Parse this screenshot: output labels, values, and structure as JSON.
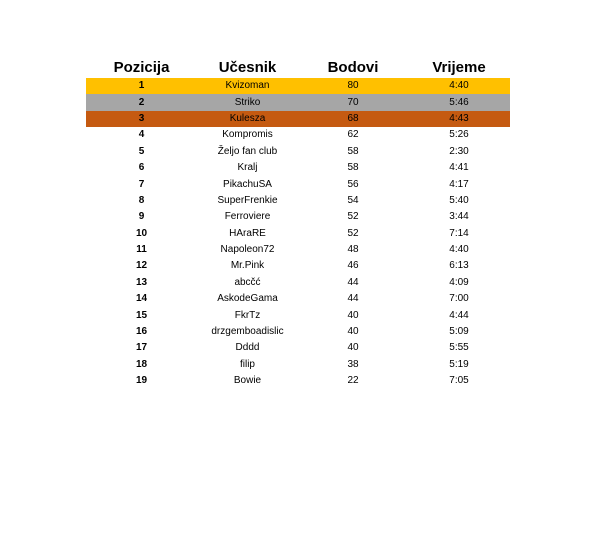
{
  "table": {
    "headers": {
      "position": "Pozicija",
      "participant": "Učesnik",
      "points": "Bodovi",
      "time": "Vrijeme"
    },
    "rows": [
      {
        "position": "1",
        "participant": "Kvizoman",
        "points": "80",
        "time": "4:40",
        "color": "#FFC000"
      },
      {
        "position": "2",
        "participant": "Striko",
        "points": "70",
        "time": "5:46",
        "color": "#A6A6A6"
      },
      {
        "position": "3",
        "participant": "Kulesza",
        "points": "68",
        "time": "4:43",
        "color": "#C55A11"
      },
      {
        "position": "4",
        "participant": "Kompromis",
        "points": "62",
        "time": "5:26"
      },
      {
        "position": "5",
        "participant": "Željo fan club",
        "points": "58",
        "time": "2:30"
      },
      {
        "position": "6",
        "participant": "Kralj",
        "points": "58",
        "time": "4:41"
      },
      {
        "position": "7",
        "participant": "PikachuSA",
        "points": "56",
        "time": "4:17"
      },
      {
        "position": "8",
        "participant": "SuperFrenkie",
        "points": "54",
        "time": "5:40"
      },
      {
        "position": "9",
        "participant": "Ferroviere",
        "points": "52",
        "time": "3:44"
      },
      {
        "position": "10",
        "participant": "HAraRE",
        "points": "52",
        "time": "7:14"
      },
      {
        "position": "11",
        "participant": "Napoleon72",
        "points": "48",
        "time": "4:40"
      },
      {
        "position": "12",
        "participant": "Mr.Pink",
        "points": "46",
        "time": "6:13"
      },
      {
        "position": "13",
        "participant": "abcčć",
        "points": "44",
        "time": "4:09"
      },
      {
        "position": "14",
        "participant": "AskodeGama",
        "points": "44",
        "time": "7:00"
      },
      {
        "position": "15",
        "participant": "FkrTz",
        "points": "40",
        "time": "4:44"
      },
      {
        "position": "16",
        "participant": "drzgemboadislic",
        "points": "40",
        "time": "5:09"
      },
      {
        "position": "17",
        "participant": "Dddd",
        "points": "40",
        "time": "5:55"
      },
      {
        "position": "18",
        "participant": "filip",
        "points": "38",
        "time": "5:19"
      },
      {
        "position": "19",
        "participant": "Bowie",
        "points": "22",
        "time": "7:05"
      }
    ]
  }
}
